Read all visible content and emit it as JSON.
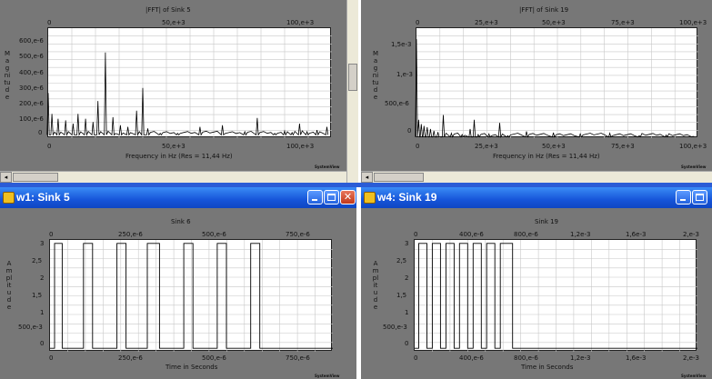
{
  "panes": [
    {
      "id": "p1",
      "window_title": "",
      "title": "|FFT| of Sink 5",
      "xlabel": "Frequency in Hz (Res = 11,44 Hz)",
      "ylabel": "Magnitude",
      "brand": "SystemView",
      "xticks_bottom": [
        "0",
        "50,e+3",
        "100,e+3"
      ],
      "xticks_top": [
        "0",
        "50,e+3",
        "100,e+3"
      ],
      "yticks": [
        "600,e-6",
        "500,e-6",
        "400,e-6",
        "300,e-6",
        "200,e-6",
        "100,e-6",
        "0"
      ]
    },
    {
      "id": "p2",
      "window_title": "",
      "title": "|FFT| of Sink 19",
      "xlabel": "Frequency in Hz (Res = 11,44 Hz)",
      "ylabel": "Magnitude",
      "brand": "SystemView",
      "xticks_bottom": [
        "0",
        "25,e+3",
        "50,e+3",
        "75,e+3",
        "100,e+3"
      ],
      "xticks_top": [
        "0",
        "25,e+3",
        "50,e+3",
        "75,e+3",
        "100,e+3"
      ],
      "yticks": [
        "1,5e-3",
        "1,e-3",
        "500,e-6",
        "0"
      ]
    },
    {
      "id": "p3",
      "window_title": "w1: Sink 5",
      "title": "Sink 6",
      "xlabel": "Time in Seconds",
      "ylabel": "Amplitude",
      "brand": "SystemView",
      "xticks_bottom": [
        "0",
        "250,e-6",
        "500,e-6",
        "750,e-6"
      ],
      "xticks_top": [
        "0",
        "250,e-6",
        "500,e-6",
        "750,e-6"
      ],
      "yticks": [
        "3",
        "2,5",
        "2",
        "1,5",
        "1",
        "500,e-3",
        "0"
      ]
    },
    {
      "id": "p4",
      "window_title": "w4: Sink 19",
      "title": "Sink 19",
      "xlabel": "Time in Seconds",
      "ylabel": "Amplitude",
      "brand": "SystemView",
      "xticks_bottom": [
        "0",
        "400,e-6",
        "800,e-6",
        "1,2e-3",
        "1,6e-3",
        "2,e-3"
      ],
      "xticks_top": [
        "0",
        "400,e-6",
        "800,e-6",
        "1,2e-3",
        "1,6e-3",
        "2,e-3"
      ],
      "yticks": [
        "3",
        "2,5",
        "2",
        "1,5",
        "1",
        "500,e-3",
        "0"
      ]
    }
  ],
  "chart_data": [
    {
      "type": "line",
      "title": "|FFT| of Sink 5",
      "xlabel": "Frequency in Hz (Res = 11,44 Hz)",
      "ylabel": "Magnitude",
      "xlim": [
        0,
        114000
      ],
      "ylim": [
        0,
        0.00068
      ],
      "grid": true,
      "peaks": [
        {
          "x": 0,
          "y": 0.00028
        },
        {
          "x": 1500,
          "y": 0.00015
        },
        {
          "x": 4000,
          "y": 0.00012
        },
        {
          "x": 7000,
          "y": 0.00011
        },
        {
          "x": 10000,
          "y": 9e-05
        },
        {
          "x": 12000,
          "y": 0.00015
        },
        {
          "x": 15000,
          "y": 0.00012
        },
        {
          "x": 18000,
          "y": 0.0001
        },
        {
          "x": 20000,
          "y": 0.00023
        },
        {
          "x": 23000,
          "y": 0.00053
        },
        {
          "x": 26000,
          "y": 0.00013
        },
        {
          "x": 29000,
          "y": 8e-05
        },
        {
          "x": 32000,
          "y": 7e-05
        },
        {
          "x": 35500,
          "y": 0.00017
        },
        {
          "x": 38000,
          "y": 0.00031
        },
        {
          "x": 40000,
          "y": 6e-05
        },
        {
          "x": 45000,
          "y": 3e-05
        },
        {
          "x": 52000,
          "y": 3e-05
        },
        {
          "x": 61000,
          "y": 7e-05
        },
        {
          "x": 70000,
          "y": 8e-05
        },
        {
          "x": 79000,
          "y": 4e-05
        },
        {
          "x": 84000,
          "y": 0.000125
        },
        {
          "x": 91000,
          "y": 3e-05
        },
        {
          "x": 95000,
          "y": 4.5e-05
        },
        {
          "x": 98000,
          "y": 3.5e-05
        },
        {
          "x": 101000,
          "y": 9e-05
        },
        {
          "x": 104000,
          "y": 4e-05
        },
        {
          "x": 108000,
          "y": 5e-05
        },
        {
          "x": 112000,
          "y": 7e-05
        }
      ],
      "floor": 2e-05
    },
    {
      "type": "line",
      "title": "|FFT| of Sink 19",
      "xlabel": "Frequency in Hz (Res = 11,44 Hz)",
      "ylabel": "Magnitude",
      "xlim": [
        0,
        105000
      ],
      "ylim": [
        0,
        0.0018
      ],
      "grid": true,
      "peaks": [
        {
          "x": 0,
          "y": 0.00162
        },
        {
          "x": 800,
          "y": 0.0003
        },
        {
          "x": 1800,
          "y": 0.00023
        },
        {
          "x": 2800,
          "y": 0.0002
        },
        {
          "x": 4000,
          "y": 0.00018
        },
        {
          "x": 5200,
          "y": 0.00015
        },
        {
          "x": 6500,
          "y": 0.00012
        },
        {
          "x": 8000,
          "y": 0.0001
        },
        {
          "x": 10000,
          "y": 0.00038
        },
        {
          "x": 13000,
          "y": 8e-05
        },
        {
          "x": 17000,
          "y": 6e-05
        },
        {
          "x": 20000,
          "y": 0.00015
        },
        {
          "x": 21500,
          "y": 0.0003
        },
        {
          "x": 23000,
          "y": 6e-05
        },
        {
          "x": 27000,
          "y": 7e-05
        },
        {
          "x": 31000,
          "y": 0.00025
        },
        {
          "x": 34000,
          "y": 4e-05
        },
        {
          "x": 41000,
          "y": 0.00011
        },
        {
          "x": 51000,
          "y": 9e-05
        },
        {
          "x": 61000,
          "y": 7e-05
        },
        {
          "x": 72000,
          "y": 8e-05
        },
        {
          "x": 83000,
          "y": 4e-05
        },
        {
          "x": 93000,
          "y": 5e-05
        },
        {
          "x": 103000,
          "y": 3e-05
        }
      ],
      "floor": 2e-05
    },
    {
      "type": "line",
      "title": "Sink 6",
      "xlabel": "Time in Seconds",
      "ylabel": "Amplitude",
      "xlim": [
        0,
        0.00093
      ],
      "ylim": [
        -0.1,
        3.1
      ],
      "grid": true,
      "pulses": [
        [
          1.5e-05,
          4e-05
        ],
        [
          0.00011,
          0.00014
        ],
        [
          0.00022,
          0.00025
        ],
        [
          0.00032,
          0.00036
        ],
        [
          0.00044,
          0.00047
        ],
        [
          0.00055,
          0.00058
        ],
        [
          0.00066,
          0.00069
        ]
      ],
      "high": 3,
      "low": 0
    },
    {
      "type": "line",
      "title": "Sink 19",
      "xlabel": "Time in Seconds",
      "ylabel": "Amplitude",
      "xlim": [
        0,
        0.00208
      ],
      "ylim": [
        -0.1,
        3.1
      ],
      "grid": true,
      "pulses": [
        [
          3e-05,
          9e-05
        ],
        [
          0.00013,
          0.00019
        ],
        [
          0.00023,
          0.00029
        ],
        [
          0.00033,
          0.00039
        ],
        [
          0.00043,
          0.00049
        ],
        [
          0.00053,
          0.00059
        ],
        [
          0.00063,
          0.00072
        ]
      ],
      "high": 3,
      "low": 0
    }
  ]
}
